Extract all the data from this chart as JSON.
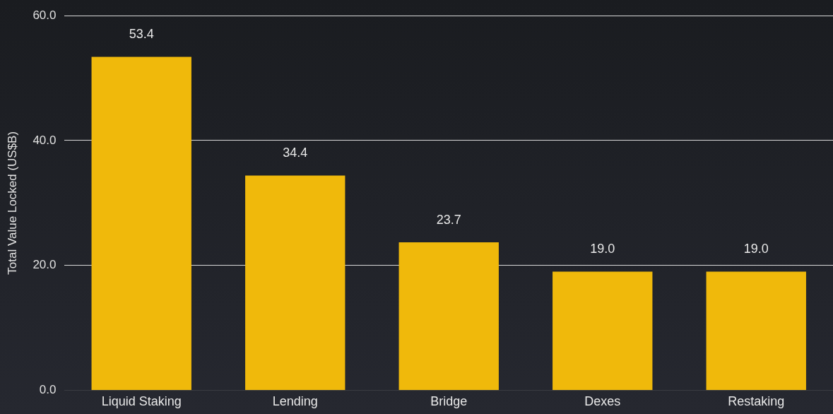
{
  "chart_data": {
    "type": "bar",
    "ylabel": "Total Value Locked (US$B)",
    "categories": [
      "Liquid Staking",
      "Lending",
      "Bridge",
      "Dexes",
      "Restaking"
    ],
    "values": [
      53.4,
      34.4,
      23.7,
      19.0,
      19.0
    ],
    "value_labels": [
      "53.4",
      "34.4",
      "23.7",
      "19.0",
      "19.0"
    ],
    "color": "#f0b90b",
    "ylim": [
      0,
      60
    ],
    "yticks": [
      {
        "value": 0,
        "label": "0.0"
      },
      {
        "value": 20,
        "label": "20.0"
      },
      {
        "value": 40,
        "label": "40.0"
      },
      {
        "value": 60,
        "label": "60.0"
      }
    ],
    "grid": "y",
    "legend": false
  }
}
